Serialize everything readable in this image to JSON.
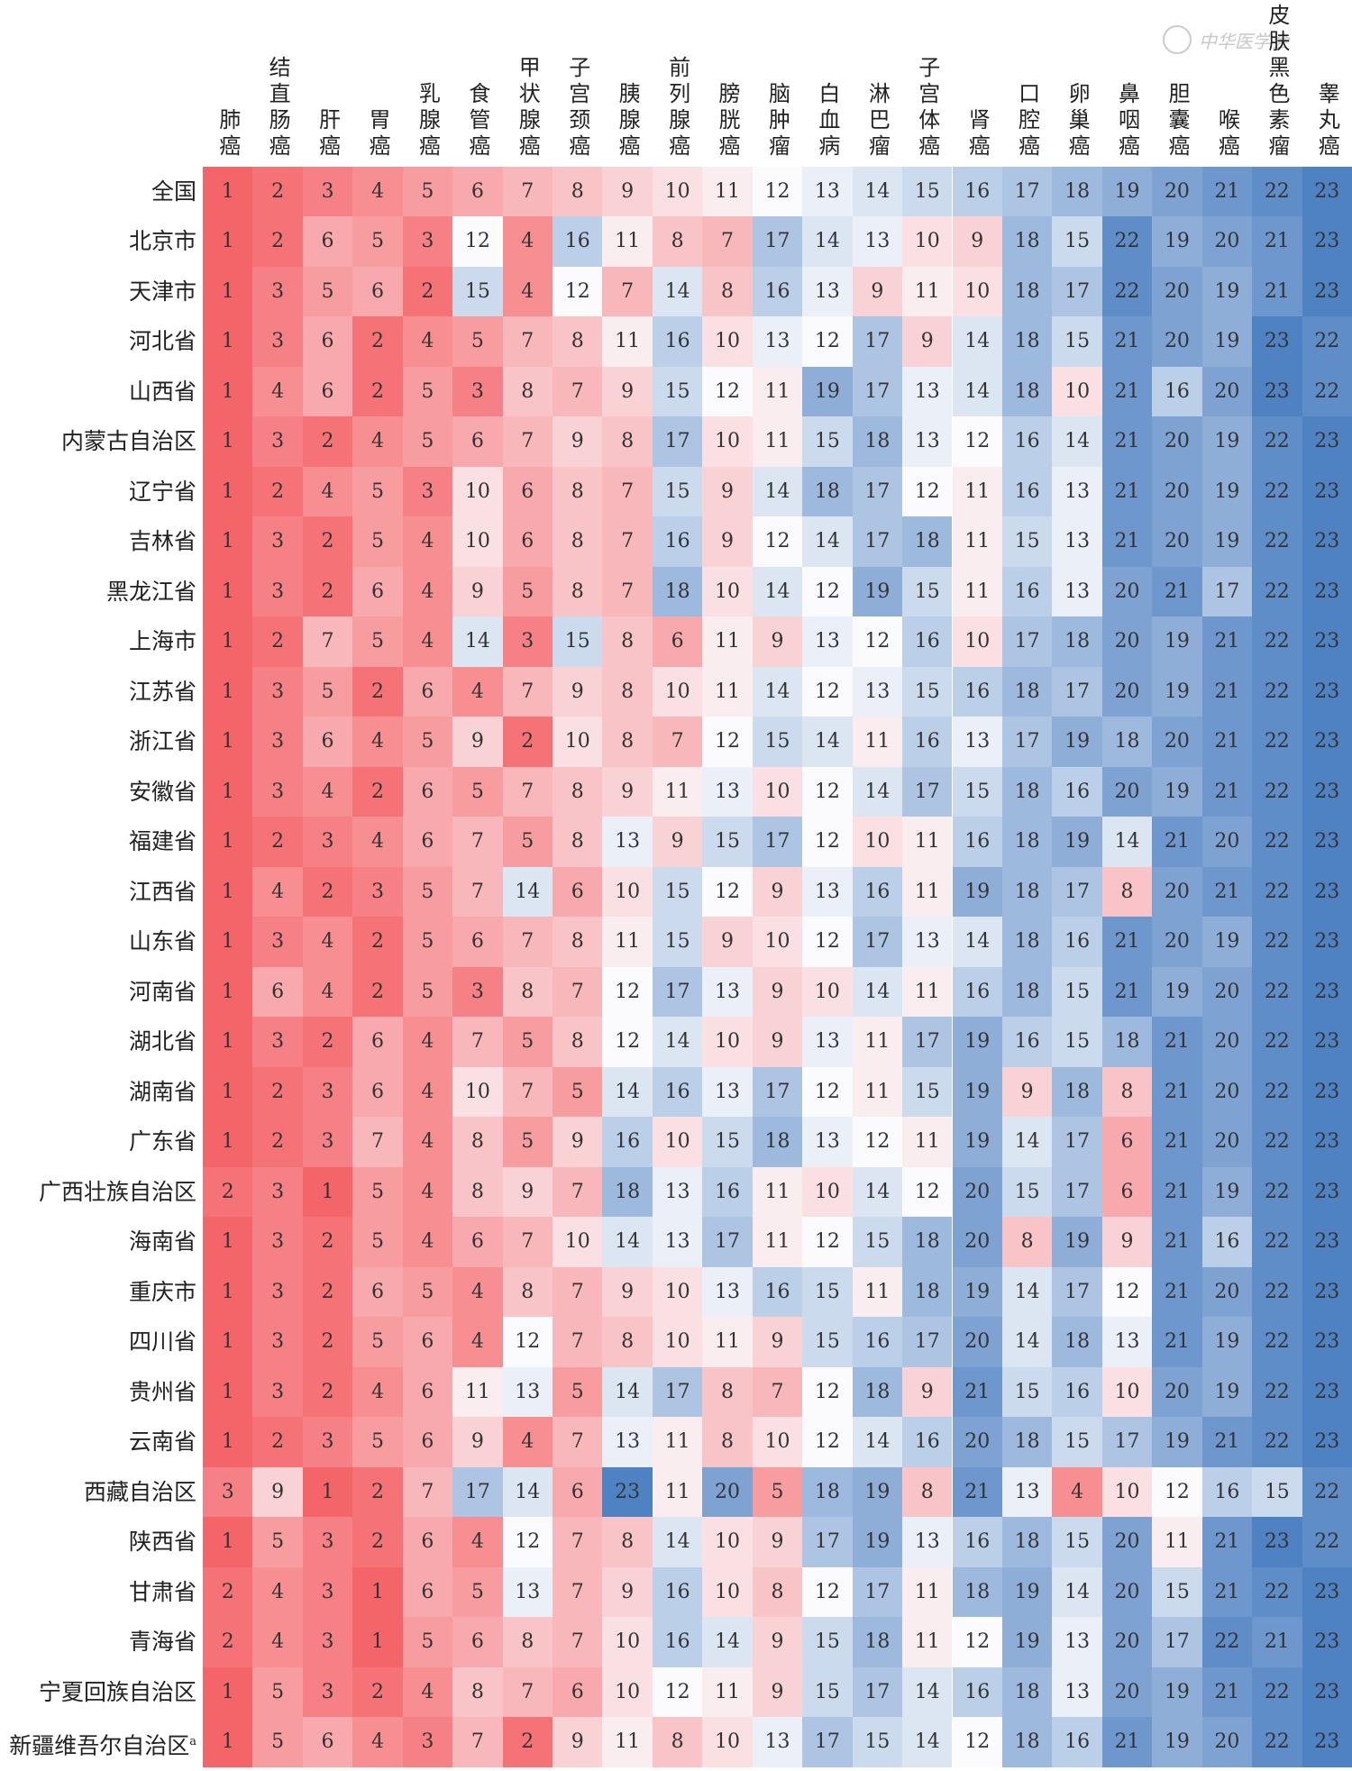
{
  "watermark": "中华医学会",
  "chart_data": {
    "type": "heatmap",
    "title": "",
    "color_scale": {
      "low": "#f4656a",
      "mid": "#fbfbfd",
      "high": "#4f82c2",
      "range": [
        1,
        23
      ]
    },
    "columns": [
      "肺癌",
      "结直肠癌",
      "肝癌",
      "胃癌",
      "乳腺癌",
      "食管癌",
      "甲状腺癌",
      "子宫颈癌",
      "胰腺癌",
      "前列腺癌",
      "膀胱癌",
      "脑肿瘤",
      "白血病",
      "淋巴瘤",
      "子宫体癌",
      "肾癌",
      "口腔癌",
      "卵巢癌",
      "鼻咽癌",
      "胆囊癌",
      "喉癌",
      "皮肤黑色素瘤",
      "睾丸癌"
    ],
    "rows": [
      "全国",
      "北京市",
      "天津市",
      "河北省",
      "山西省",
      "内蒙古自治区",
      "辽宁省",
      "吉林省",
      "黑龙江省",
      "上海市",
      "江苏省",
      "浙江省",
      "安徽省",
      "福建省",
      "江西省",
      "山东省",
      "河南省",
      "湖北省",
      "湖南省",
      "广东省",
      "广西壮族自治区",
      "海南省",
      "重庆市",
      "四川省",
      "贵州省",
      "云南省",
      "西藏自治区",
      "陕西省",
      "甘肃省",
      "青海省",
      "宁夏回族自治区",
      "新疆维吾尔自治区"
    ],
    "row_footnote": {
      "新疆维吾尔自治区": "a"
    },
    "values": [
      [
        1,
        2,
        3,
        4,
        5,
        6,
        7,
        8,
        9,
        10,
        11,
        12,
        13,
        14,
        15,
        16,
        17,
        18,
        19,
        20,
        21,
        22,
        23
      ],
      [
        1,
        2,
        6,
        5,
        3,
        12,
        4,
        16,
        11,
        8,
        7,
        17,
        14,
        13,
        10,
        9,
        18,
        15,
        22,
        19,
        20,
        21,
        23
      ],
      [
        1,
        3,
        5,
        6,
        2,
        15,
        4,
        12,
        7,
        14,
        8,
        16,
        13,
        9,
        11,
        10,
        18,
        17,
        22,
        20,
        19,
        21,
        23
      ],
      [
        1,
        3,
        6,
        2,
        4,
        5,
        7,
        8,
        11,
        16,
        10,
        13,
        12,
        17,
        9,
        14,
        18,
        15,
        21,
        20,
        19,
        23,
        22
      ],
      [
        1,
        4,
        6,
        2,
        5,
        3,
        8,
        7,
        9,
        15,
        12,
        11,
        19,
        17,
        13,
        14,
        18,
        10,
        21,
        16,
        20,
        23,
        22
      ],
      [
        1,
        3,
        2,
        4,
        5,
        6,
        7,
        9,
        8,
        17,
        10,
        11,
        15,
        18,
        13,
        12,
        16,
        14,
        21,
        20,
        19,
        22,
        23
      ],
      [
        1,
        2,
        4,
        5,
        3,
        10,
        6,
        8,
        7,
        15,
        9,
        14,
        18,
        17,
        12,
        11,
        16,
        13,
        21,
        20,
        19,
        22,
        23
      ],
      [
        1,
        3,
        2,
        5,
        4,
        10,
        6,
        8,
        7,
        16,
        9,
        12,
        14,
        17,
        18,
        11,
        15,
        13,
        21,
        20,
        19,
        22,
        23
      ],
      [
        1,
        3,
        2,
        6,
        4,
        9,
        5,
        8,
        7,
        18,
        10,
        14,
        12,
        19,
        15,
        11,
        16,
        13,
        20,
        21,
        17,
        22,
        23
      ],
      [
        1,
        2,
        7,
        5,
        4,
        14,
        3,
        15,
        8,
        6,
        11,
        9,
        13,
        12,
        16,
        10,
        17,
        18,
        20,
        19,
        21,
        22,
        23
      ],
      [
        1,
        3,
        5,
        2,
        6,
        4,
        7,
        9,
        8,
        10,
        11,
        14,
        12,
        13,
        15,
        16,
        18,
        17,
        20,
        19,
        21,
        22,
        23
      ],
      [
        1,
        3,
        6,
        4,
        5,
        9,
        2,
        10,
        8,
        7,
        12,
        15,
        14,
        11,
        16,
        13,
        17,
        19,
        18,
        20,
        21,
        22,
        23
      ],
      [
        1,
        3,
        4,
        2,
        6,
        5,
        7,
        8,
        9,
        11,
        13,
        10,
        12,
        14,
        17,
        15,
        18,
        16,
        20,
        19,
        21,
        22,
        23
      ],
      [
        1,
        2,
        3,
        4,
        6,
        7,
        5,
        8,
        13,
        9,
        15,
        17,
        12,
        10,
        11,
        16,
        18,
        19,
        14,
        21,
        20,
        22,
        23
      ],
      [
        1,
        4,
        2,
        3,
        5,
        7,
        14,
        6,
        10,
        15,
        12,
        9,
        13,
        16,
        11,
        19,
        18,
        17,
        8,
        20,
        21,
        22,
        23
      ],
      [
        1,
        3,
        4,
        2,
        5,
        6,
        7,
        8,
        11,
        15,
        9,
        10,
        12,
        17,
        13,
        14,
        18,
        16,
        21,
        20,
        19,
        22,
        23
      ],
      [
        1,
        6,
        4,
        2,
        5,
        3,
        8,
        7,
        12,
        17,
        13,
        9,
        10,
        14,
        11,
        16,
        18,
        15,
        21,
        19,
        20,
        22,
        23
      ],
      [
        1,
        3,
        2,
        6,
        4,
        7,
        5,
        8,
        12,
        14,
        10,
        9,
        13,
        11,
        17,
        19,
        16,
        15,
        18,
        21,
        20,
        22,
        23
      ],
      [
        1,
        2,
        3,
        6,
        4,
        10,
        7,
        5,
        14,
        16,
        13,
        17,
        12,
        11,
        15,
        19,
        9,
        18,
        8,
        21,
        20,
        22,
        23
      ],
      [
        1,
        2,
        3,
        7,
        4,
        8,
        5,
        9,
        16,
        10,
        15,
        18,
        13,
        12,
        11,
        19,
        14,
        17,
        6,
        21,
        20,
        22,
        23
      ],
      [
        2,
        3,
        1,
        5,
        4,
        8,
        9,
        7,
        18,
        13,
        16,
        11,
        10,
        14,
        12,
        20,
        15,
        17,
        6,
        21,
        19,
        22,
        23
      ],
      [
        1,
        3,
        2,
        5,
        4,
        6,
        7,
        10,
        14,
        13,
        17,
        11,
        12,
        15,
        18,
        20,
        8,
        19,
        9,
        21,
        16,
        22,
        23
      ],
      [
        1,
        3,
        2,
        6,
        5,
        4,
        8,
        7,
        9,
        10,
        13,
        16,
        15,
        11,
        18,
        19,
        14,
        17,
        12,
        21,
        20,
        22,
        23
      ],
      [
        1,
        3,
        2,
        5,
        6,
        4,
        12,
        7,
        8,
        10,
        11,
        9,
        15,
        16,
        17,
        20,
        14,
        18,
        13,
        21,
        19,
        22,
        23
      ],
      [
        1,
        3,
        2,
        4,
        6,
        11,
        13,
        5,
        14,
        17,
        8,
        7,
        12,
        18,
        9,
        21,
        15,
        16,
        10,
        20,
        19,
        22,
        23
      ],
      [
        1,
        2,
        3,
        5,
        6,
        9,
        4,
        7,
        13,
        11,
        8,
        10,
        12,
        14,
        16,
        20,
        18,
        15,
        17,
        19,
        21,
        22,
        23
      ],
      [
        3,
        9,
        1,
        2,
        7,
        17,
        14,
        6,
        23,
        11,
        20,
        5,
        18,
        19,
        8,
        21,
        13,
        4,
        10,
        12,
        16,
        15,
        22
      ],
      [
        1,
        5,
        3,
        2,
        6,
        4,
        12,
        7,
        8,
        14,
        10,
        9,
        17,
        19,
        13,
        16,
        18,
        15,
        20,
        11,
        21,
        23,
        22
      ],
      [
        2,
        4,
        3,
        1,
        6,
        5,
        13,
        7,
        9,
        16,
        10,
        8,
        12,
        17,
        11,
        18,
        19,
        14,
        20,
        15,
        21,
        22,
        23
      ],
      [
        2,
        4,
        3,
        1,
        5,
        6,
        8,
        7,
        10,
        16,
        14,
        9,
        15,
        18,
        11,
        12,
        19,
        13,
        20,
        17,
        22,
        21,
        23
      ],
      [
        1,
        5,
        3,
        2,
        4,
        8,
        7,
        6,
        10,
        12,
        11,
        9,
        15,
        17,
        14,
        16,
        18,
        13,
        20,
        19,
        21,
        22,
        23
      ],
      [
        1,
        5,
        6,
        4,
        3,
        7,
        2,
        9,
        11,
        8,
        10,
        13,
        17,
        15,
        14,
        12,
        18,
        16,
        21,
        19,
        20,
        22,
        23
      ]
    ]
  }
}
